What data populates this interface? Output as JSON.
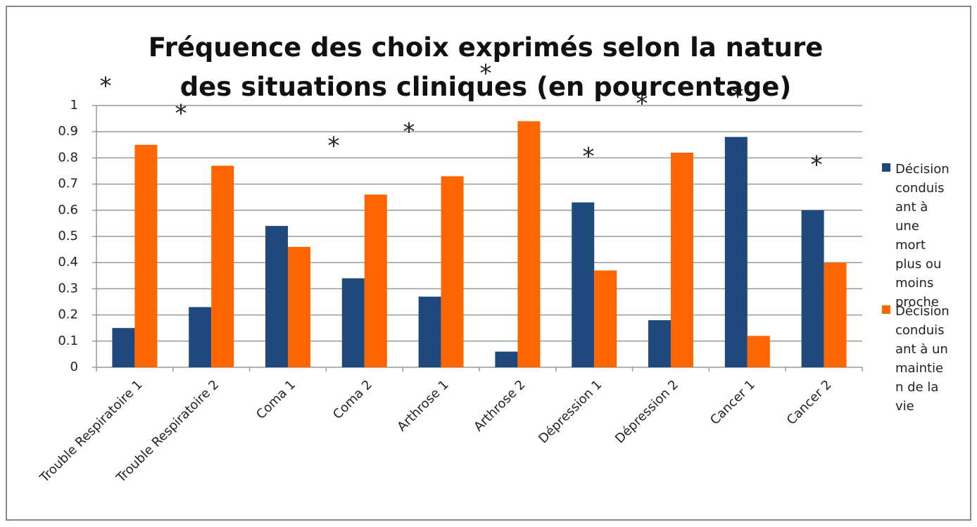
{
  "chart_data": {
    "type": "bar",
    "title": "Fréquence des choix exprimés selon la nature des situations cliniques (en pourcentage)",
    "categories": [
      "Trouble Respiratoire 1",
      "Trouble Respiratoire 2",
      "Coma 1",
      "Coma 2",
      "Arthrose 1",
      "Arthrose 2",
      "Dépression 1",
      "Dépression 2",
      "Cancer 1",
      "Cancer 2"
    ],
    "series": [
      {
        "name": "Décision conduisant à une mort plus ou moins proche",
        "color": "#1f497d",
        "values": [
          0.15,
          0.23,
          0.54,
          0.34,
          0.27,
          0.06,
          0.63,
          0.18,
          0.88,
          0.6
        ]
      },
      {
        "name": "Décision conduisant à un maintien de la vie",
        "color": "#ff6600",
        "values": [
          0.85,
          0.77,
          0.46,
          0.66,
          0.73,
          0.94,
          0.37,
          0.82,
          0.12,
          0.4
        ]
      }
    ],
    "annotations": [
      "*",
      "*",
      "*",
      "*",
      "*",
      "*",
      "*",
      "*",
      "*"
    ],
    "ylim": [
      0,
      1
    ],
    "yticks": [
      0,
      0.1,
      0.2,
      0.3,
      0.4,
      0.5,
      0.6,
      0.7,
      0.8,
      0.9,
      1
    ],
    "grid": true,
    "legend": "right"
  }
}
